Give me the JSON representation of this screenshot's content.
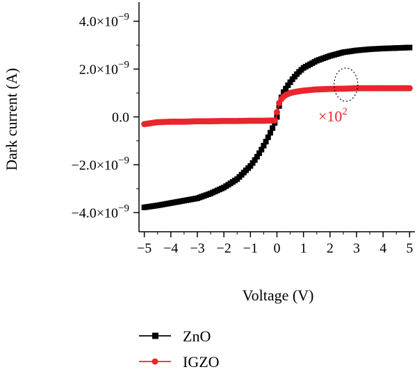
{
  "chart_data": {
    "type": "line",
    "xlabel": "Voltage (V)",
    "ylabel": "Dark current (A)",
    "xlim": [
      -5.2,
      5.2
    ],
    "ylim": [
      -4.8e-09,
      4.8e-09
    ],
    "xticks": [
      -5,
      -4,
      -3,
      -2,
      -1,
      0,
      1,
      2,
      3,
      4,
      5
    ],
    "xtick_labels": [
      "−5",
      "−4",
      "−3",
      "−2",
      "−1",
      "0",
      "1",
      "2",
      "3",
      "4",
      "5"
    ],
    "yticks": [
      -4e-09,
      -2e-09,
      0,
      2e-09,
      4e-09
    ],
    "ytick_labels": [
      {
        "mantissa": "−4.0×10",
        "exponent": "−9"
      },
      {
        "mantissa": "−2.0×10",
        "exponent": "−9"
      },
      {
        "mantissa": "0.0",
        "exponent": ""
      },
      {
        "mantissa": "2.0×10",
        "exponent": "−9"
      },
      {
        "mantissa": "4.0×10",
        "exponent": "−9"
      }
    ],
    "series": [
      {
        "name": "ZnO",
        "color": "#000000",
        "marker": "square",
        "x": [
          -5.0,
          -4.5,
          -4.0,
          -3.5,
          -3.0,
          -2.5,
          -2.0,
          -1.5,
          -1.0,
          -0.8,
          -0.6,
          -0.4,
          -0.2,
          -0.1,
          0.0,
          0.1,
          0.2,
          0.4,
          0.6,
          0.8,
          1.0,
          1.5,
          2.0,
          2.5,
          3.0,
          3.5,
          4.0,
          4.5,
          5.0
        ],
        "y": [
          -3.78e-09,
          -3.7e-09,
          -3.6e-09,
          -3.5e-09,
          -3.4e-09,
          -3.2e-09,
          -2.95e-09,
          -2.6e-09,
          -2.05e-09,
          -1.75e-09,
          -1.4e-09,
          -1e-09,
          -5.5e-10,
          -3e-10,
          0.0,
          5.5e-10,
          9.5e-10,
          1.3e-09,
          1.6e-09,
          1.85e-09,
          2.05e-09,
          2.35e-09,
          2.55e-09,
          2.7e-09,
          2.78e-09,
          2.83e-09,
          2.86e-09,
          2.88e-09,
          2.9e-09
        ]
      },
      {
        "name": "IGZO",
        "color": "#e8262c",
        "marker": "circle",
        "x": [
          -5.0,
          -4.5,
          -4.0,
          -3.5,
          -3.0,
          -2.5,
          -2.0,
          -1.5,
          -1.0,
          -0.5,
          -0.2,
          -0.05,
          0.0,
          0.05,
          0.1,
          0.2,
          0.3,
          0.5,
          0.7,
          1.0,
          1.5,
          2.0,
          2.5,
          3.0,
          3.5,
          4.0,
          4.5,
          5.0
        ],
        "y": [
          -3e-10,
          -2.2e-10,
          -2e-10,
          -2e-10,
          -1.8e-10,
          -1.8e-10,
          -1.7e-10,
          -1.7e-10,
          -1.6e-10,
          -1.6e-10,
          -1.5e-10,
          -1.5e-10,
          2e-10,
          4.5e-10,
          6.5e-10,
          8e-10,
          9e-10,
          1e-09,
          1.05e-09,
          1.1e-09,
          1.15e-09,
          1.17e-09,
          1.18e-09,
          1.2e-09,
          1.2e-09,
          1.2e-09,
          1.2e-09,
          1.2e-09
        ]
      }
    ],
    "annotation": {
      "base": "×10",
      "exponent": "2",
      "color": "#e8262c"
    },
    "legend": {
      "position": "bottom-left"
    }
  }
}
